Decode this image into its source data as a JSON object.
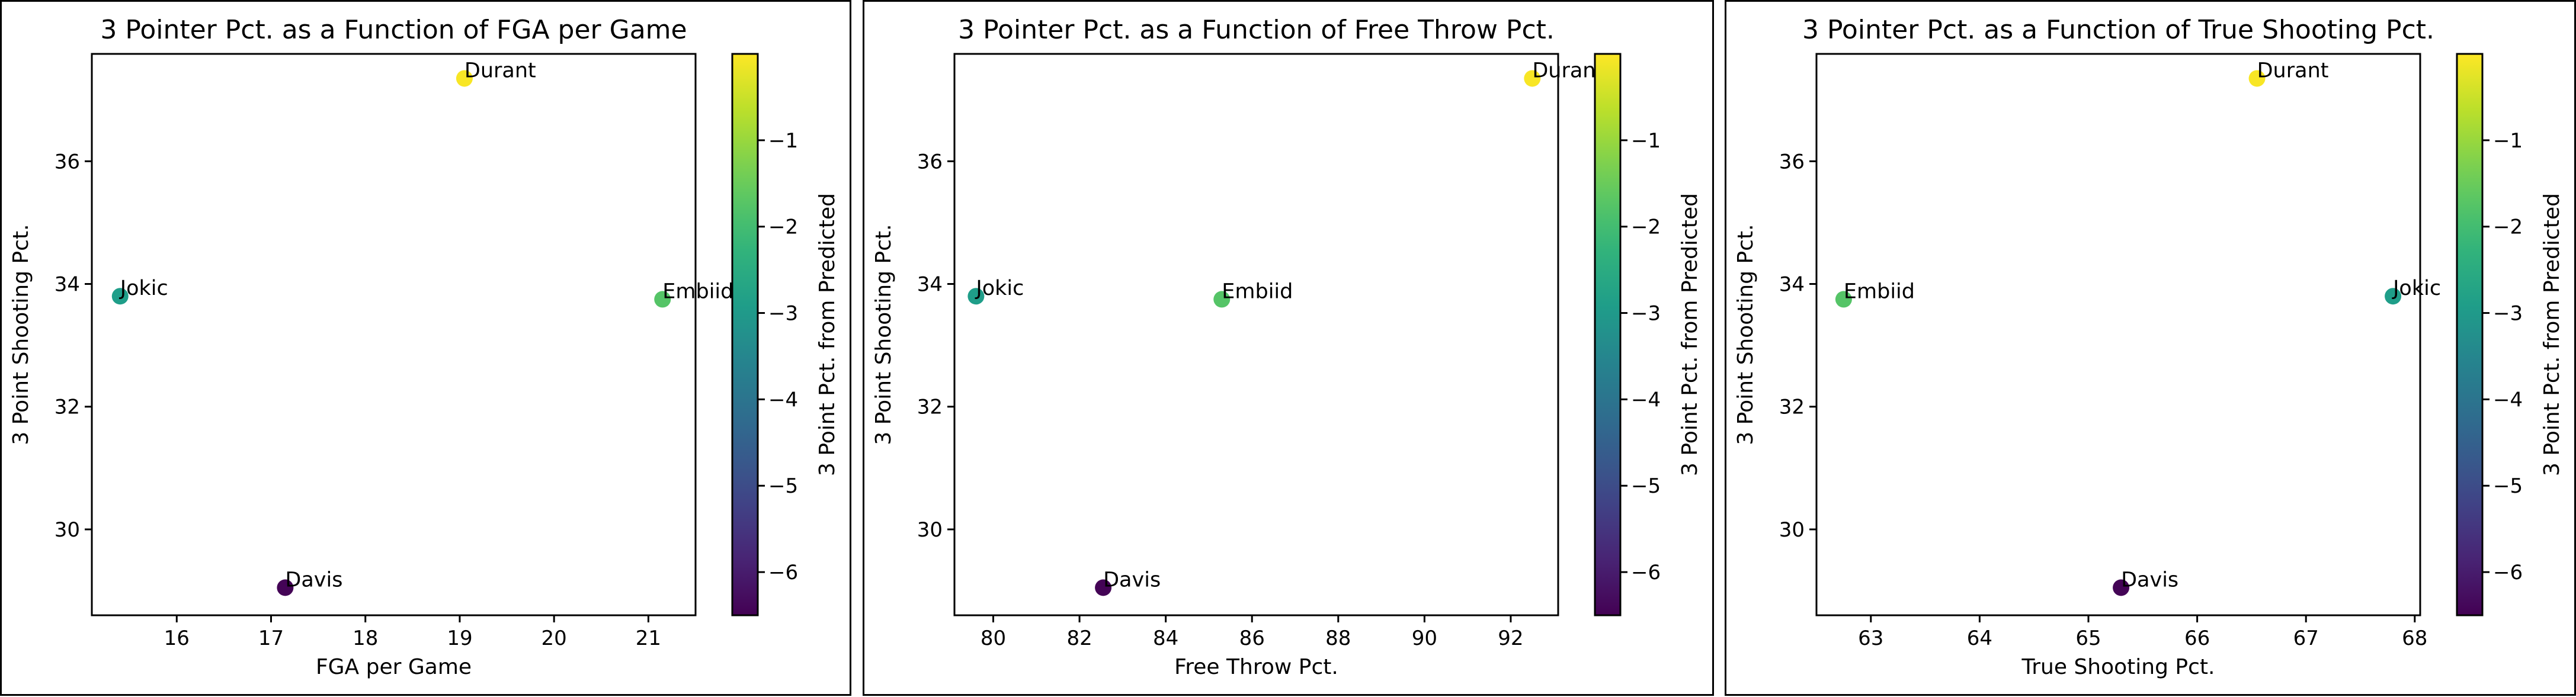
{
  "colorbar": {
    "label": "3 Point Pct. from Predicted",
    "ticks": [
      -6,
      -5,
      -4,
      -3,
      -2,
      -1
    ],
    "tick_labels": [
      "−6",
      "−5",
      "−4",
      "−3",
      "−2",
      "−1"
    ],
    "range": [
      -6.5,
      0
    ],
    "colormap": "viridis"
  },
  "chart_data": [
    {
      "type": "scatter",
      "title": "3 Pointer Pct. as a Function of FGA per Game",
      "xlabel": "FGA per Game",
      "ylabel": "3 Point Shooting Pct.",
      "xlim": [
        15.1,
        21.5
      ],
      "ylim": [
        28.6,
        37.75
      ],
      "xticks": [
        16,
        17,
        18,
        19,
        20,
        21
      ],
      "yticks": [
        30,
        32,
        34,
        36
      ],
      "points": [
        {
          "label": "Durant",
          "x": 19.05,
          "y": 37.35,
          "c": -0.05
        },
        {
          "label": "Jokic",
          "x": 15.4,
          "y": 33.8,
          "c": -2.9
        },
        {
          "label": "Embiid",
          "x": 21.15,
          "y": 33.75,
          "c": -1.75
        },
        {
          "label": "Davis",
          "x": 17.15,
          "y": 29.05,
          "c": -6.45
        }
      ]
    },
    {
      "type": "scatter",
      "title": "3 Pointer Pct. as a Function of Free Throw Pct.",
      "xlabel": "Free Throw Pct.",
      "ylabel": "3 Point Shooting Pct.",
      "xlim": [
        79.1,
        93.1
      ],
      "ylim": [
        28.6,
        37.75
      ],
      "xticks": [
        80,
        82,
        84,
        86,
        88,
        90,
        92
      ],
      "yticks": [
        30,
        32,
        34,
        36
      ],
      "points": [
        {
          "label": "Durant",
          "x": 92.5,
          "y": 37.35,
          "c": -0.05
        },
        {
          "label": "Jokic",
          "x": 79.6,
          "y": 33.8,
          "c": -2.9
        },
        {
          "label": "Embiid",
          "x": 85.3,
          "y": 33.75,
          "c": -1.75
        },
        {
          "label": "Davis",
          "x": 82.55,
          "y": 29.05,
          "c": -6.45
        }
      ]
    },
    {
      "type": "scatter",
      "title": "3 Pointer Pct. as a Function of True Shooting Pct.",
      "xlabel": "True Shooting Pct.",
      "ylabel": "3 Point Shooting Pct.",
      "xlim": [
        62.5,
        68.05
      ],
      "ylim": [
        28.6,
        37.75
      ],
      "xticks": [
        63,
        64,
        65,
        66,
        67,
        68
      ],
      "yticks": [
        30,
        32,
        34,
        36
      ],
      "points": [
        {
          "label": "Durant",
          "x": 66.55,
          "y": 37.35,
          "c": -0.05
        },
        {
          "label": "Jokic",
          "x": 67.8,
          "y": 33.8,
          "c": -2.9
        },
        {
          "label": "Embiid",
          "x": 62.75,
          "y": 33.75,
          "c": -1.75
        },
        {
          "label": "Davis",
          "x": 65.3,
          "y": 29.05,
          "c": -6.45
        }
      ]
    }
  ]
}
